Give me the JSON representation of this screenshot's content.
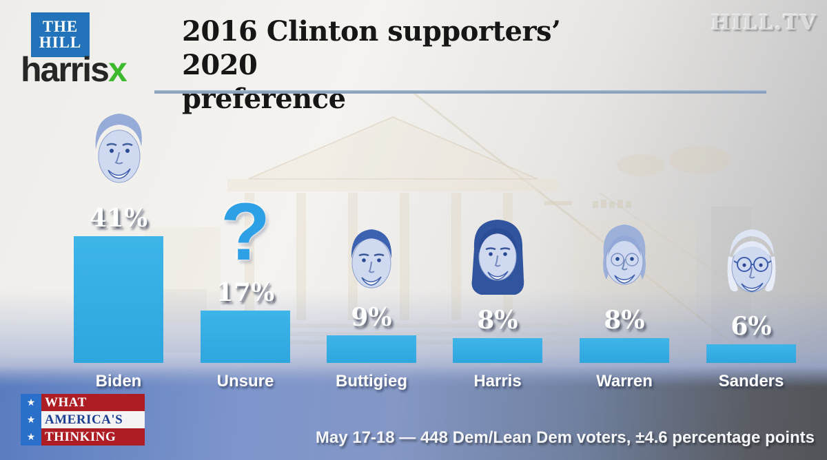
{
  "header": {
    "the_hill_logo": {
      "line1": "THE",
      "line2": "HILL"
    },
    "harrisx_logo": {
      "text": "harris",
      "x": "x"
    },
    "watermark": "HILL.TV",
    "title_line1": "2016 Clinton supporters’ 2020",
    "title_line2": "preference"
  },
  "chart_data": {
    "type": "bar",
    "title": "2016 Clinton supporters’ 2020 preference",
    "unit": "percent",
    "categories": [
      "Biden",
      "Unsure",
      "Buttigieg",
      "Harris",
      "Warren",
      "Sanders"
    ],
    "values": [
      41,
      17,
      9,
      8,
      8,
      6
    ],
    "columns": [
      {
        "label": "Biden",
        "value": 41,
        "display": "41%",
        "icon": "biden-face"
      },
      {
        "label": "Unsure",
        "value": 17,
        "display": "17%",
        "icon": "question-mark"
      },
      {
        "label": "Buttigieg",
        "value": 9,
        "display": "9%",
        "icon": "buttigieg-face"
      },
      {
        "label": "Harris",
        "value": 8,
        "display": "8%",
        "icon": "harris-face"
      },
      {
        "label": "Warren",
        "value": 8,
        "display": "8%",
        "icon": "warren-face"
      },
      {
        "label": "Sanders",
        "value": 6,
        "display": "6%",
        "icon": "sanders-face"
      }
    ],
    "ylim": [
      0,
      45
    ],
    "grid": false,
    "legend": false,
    "bar_color": "#35aee4",
    "question_mark_color": "#2da0e6"
  },
  "footer": {
    "wat_logo": {
      "star": "★",
      "rows": [
        "WHAT",
        "AMERICA'S",
        "THINKING"
      ]
    },
    "source_note": "May 17-18 — 448 Dem/Lean Dem voters, ±4.6 percentage points"
  },
  "colors": {
    "bar": "#35aee4",
    "hill_blue": "#2273b9",
    "harrisx_green": "#3db92e",
    "logo_red": "#ae1d24",
    "logo_star_blue": "#2a6fc9",
    "band_blue": "#5a7cbf",
    "band_gray": "#525459"
  }
}
